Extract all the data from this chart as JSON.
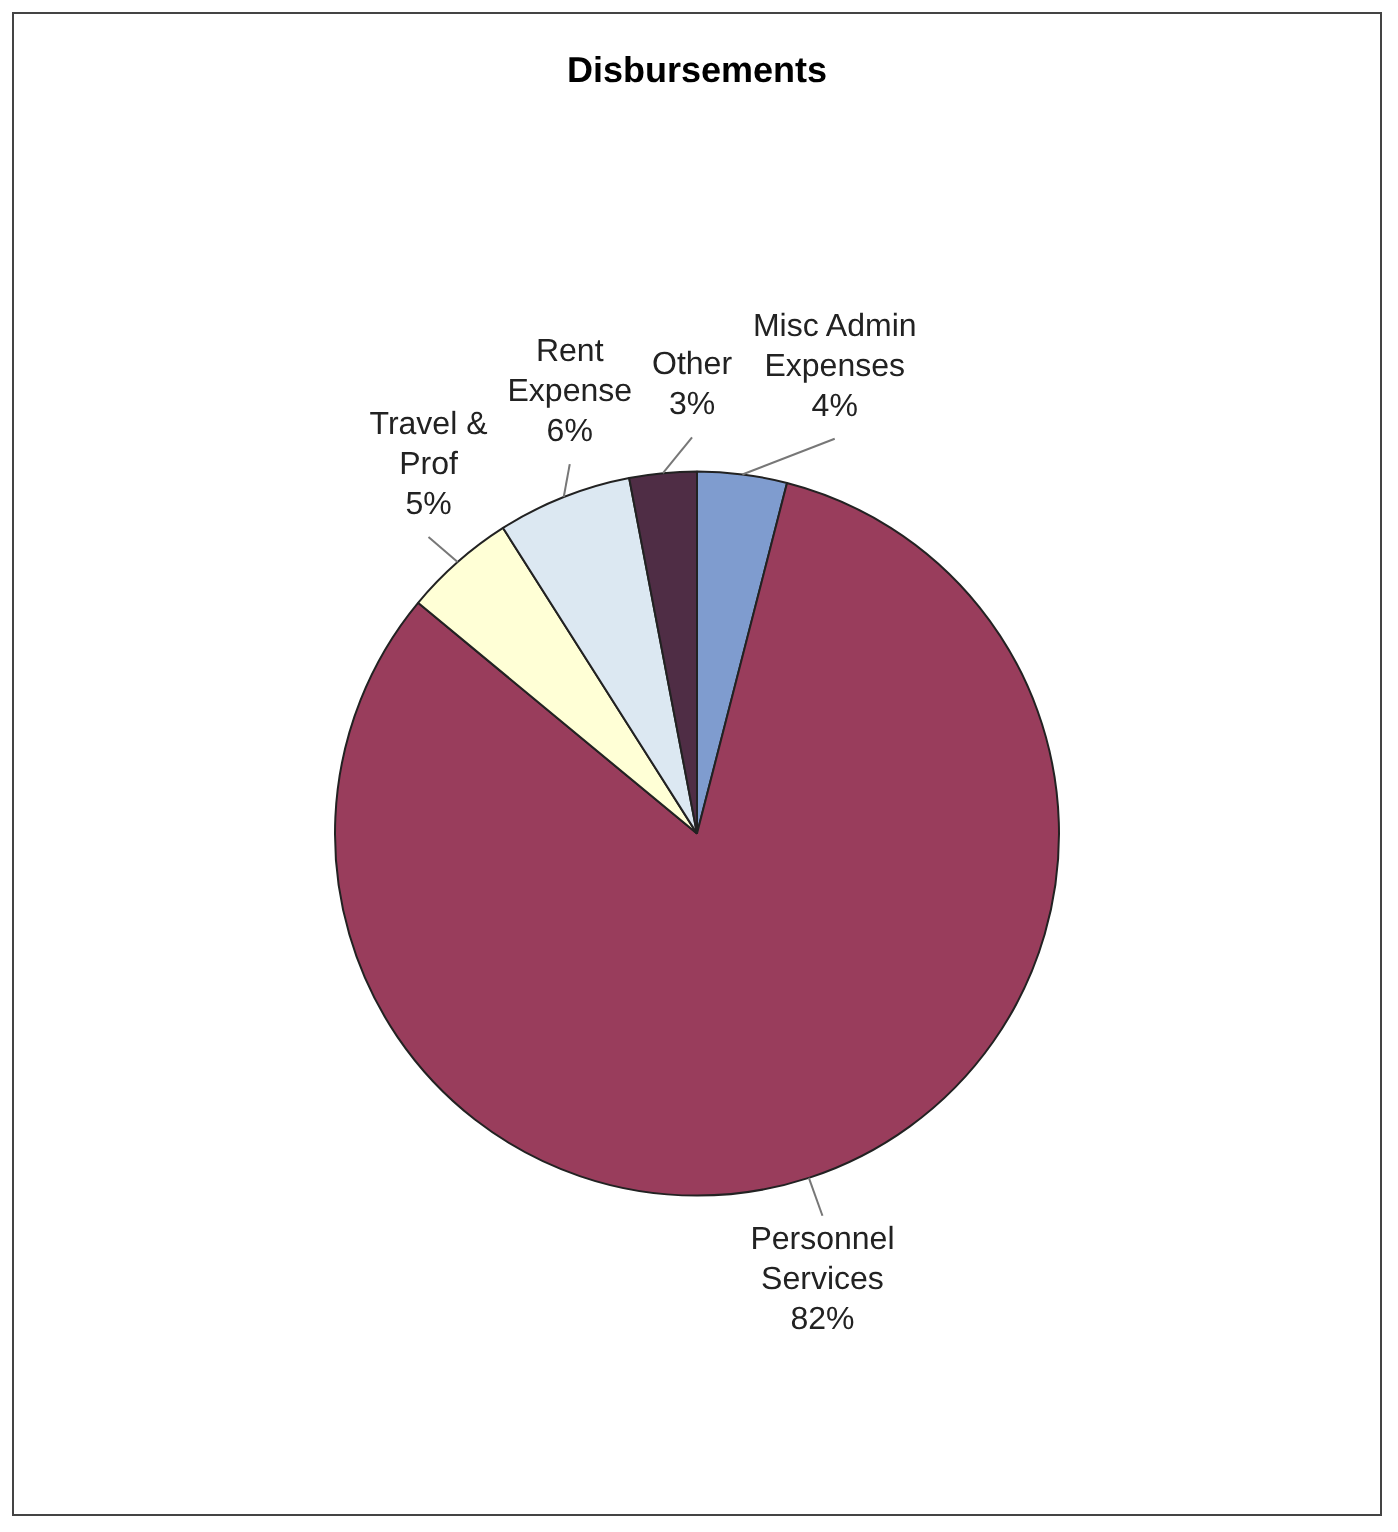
{
  "chart_data": {
    "type": "pie",
    "title": "Disbursements",
    "categories": [
      "Misc Admin Expenses",
      "Personnel Services",
      "Travel & Prof",
      "Rent Expense",
      "Other"
    ],
    "values": [
      4,
      82,
      5,
      6,
      3
    ],
    "colors": [
      "#7f9ccf",
      "#993d5c",
      "#ffffd6",
      "#dce8f2",
      "#4f2d45"
    ],
    "value_labels": [
      "4%",
      "82%",
      "5%",
      "6%",
      "3%"
    ],
    "legend": false
  }
}
